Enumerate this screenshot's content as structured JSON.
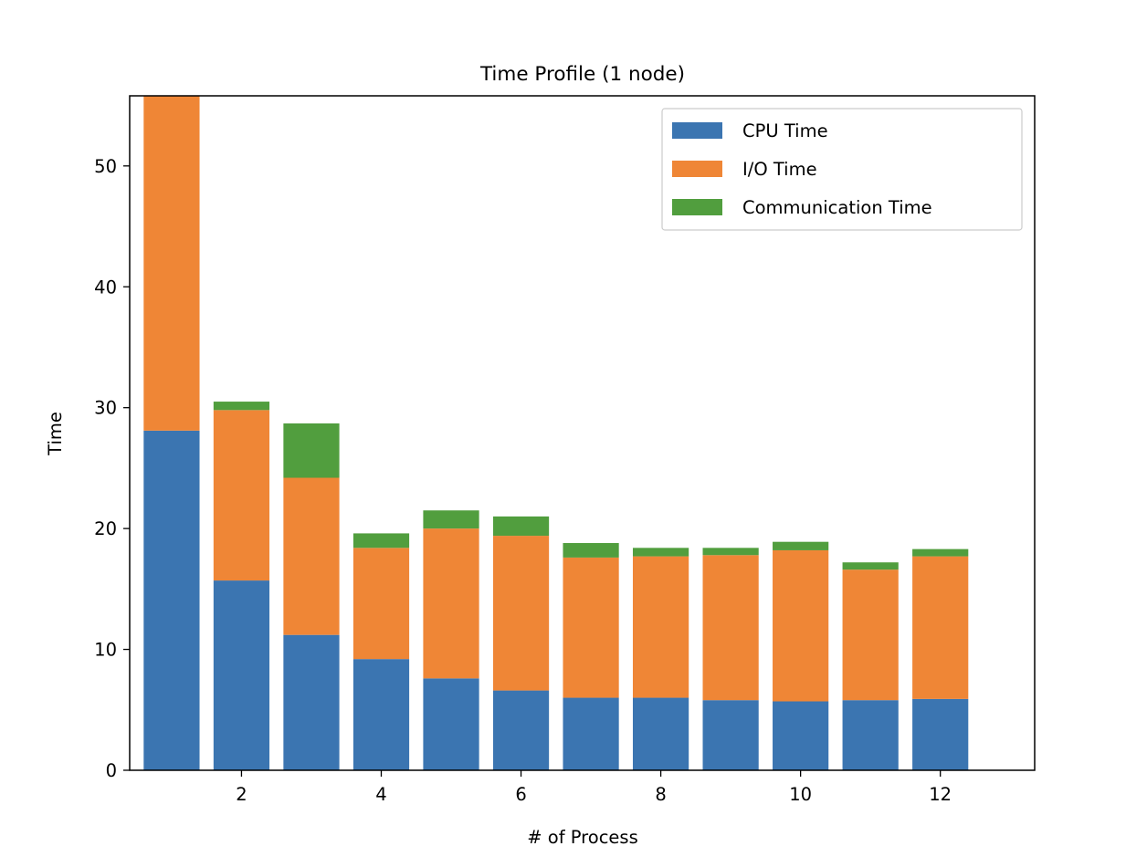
{
  "chart_data": {
    "type": "bar",
    "stacked": true,
    "title": "Time Profile (1 node)",
    "xlabel": "# of Process",
    "ylabel": "Time",
    "x": [
      1,
      2,
      3,
      4,
      5,
      6,
      7,
      8,
      9,
      10,
      11,
      12
    ],
    "xticks": [
      2,
      4,
      6,
      8,
      10,
      12
    ],
    "yticks": [
      0,
      10,
      20,
      30,
      40,
      50
    ],
    "xlim": [
      0.4,
      13.35
    ],
    "ylim": [
      0,
      55.8
    ],
    "grid": false,
    "legend_position": "top-right",
    "series": [
      {
        "name": "CPU Time",
        "color": "#3b75b1",
        "values": [
          28.1,
          15.7,
          11.2,
          9.2,
          7.6,
          6.6,
          6.0,
          6.0,
          5.8,
          5.7,
          5.8,
          5.9
        ]
      },
      {
        "name": "I/O Time",
        "color": "#ef8636",
        "values": [
          27.7,
          14.1,
          13.0,
          9.2,
          12.4,
          12.8,
          11.6,
          11.7,
          12.0,
          12.5,
          10.8,
          11.8
        ]
      },
      {
        "name": "Communication Time",
        "color": "#519e3e",
        "values": [
          0.0,
          0.7,
          4.5,
          1.2,
          1.5,
          1.6,
          1.2,
          0.7,
          0.6,
          0.7,
          0.6,
          0.6
        ]
      }
    ]
  }
}
